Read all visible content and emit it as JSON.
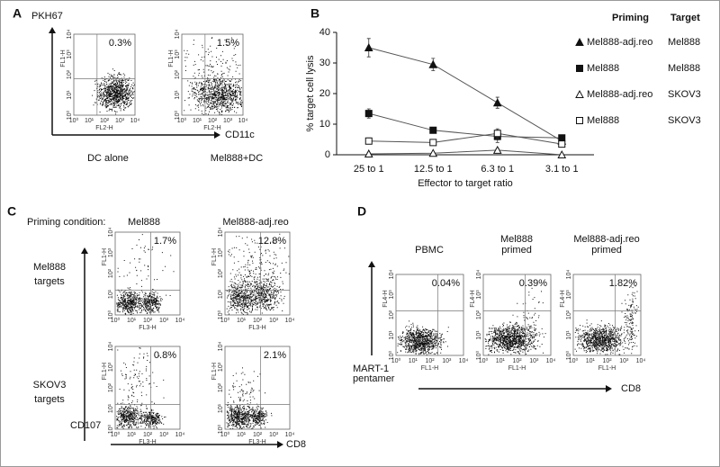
{
  "panels": {
    "A": {
      "label": "A",
      "y_axis": "PKH67",
      "x_axis": "CD11c",
      "plots": [
        {
          "title": [
            "DC alone"
          ],
          "percent": "0.3%",
          "x_label": "FL2-H",
          "y_label": "FL1-H"
        },
        {
          "title": [
            "Mel888+DC"
          ],
          "percent": "1.5%",
          "x_label": "FL2-H",
          "y_label": "FL1-H"
        }
      ]
    },
    "C": {
      "label": "C",
      "header": "Priming condition:",
      "columns": [
        "Mel888",
        "Mel888-adj.reo"
      ],
      "rows": [
        [
          "Mel888",
          "targets"
        ],
        [
          "SKOV3",
          "targets"
        ]
      ],
      "y_axis": "CD107",
      "x_axis": "CD8",
      "plots": [
        {
          "percent": "1.7%",
          "x_label": "FL3-H",
          "y_label": "FL1-H"
        },
        {
          "percent": "12.8%",
          "x_label": "FL3-H",
          "y_label": "FL1-H"
        },
        {
          "percent": "0.8%",
          "x_label": "FL3-H",
          "y_label": "FL1-H"
        },
        {
          "percent": "2.1%",
          "x_label": "FL3-H",
          "y_label": "FL1-H"
        }
      ]
    },
    "D": {
      "label": "D",
      "y_axis": [
        "MART-1",
        "pentamer"
      ],
      "x_axis": "CD8",
      "plots": [
        {
          "title": [
            "PBMC"
          ],
          "percent": "0.04%",
          "x_label": "FL1-H",
          "y_label": "FL4-H"
        },
        {
          "title": [
            "Mel888",
            "primed"
          ],
          "percent": "0.39%",
          "x_label": "FL1-H",
          "y_label": "FL4-H"
        },
        {
          "title": [
            "Mel888-adj.reo",
            "primed"
          ],
          "percent": "1.82%",
          "x_label": "FL1-H",
          "y_label": "FL4-H"
        }
      ]
    },
    "decades": [
      "10⁰",
      "10¹",
      "10²",
      "10³",
      "10⁴"
    ]
  },
  "chart_data": {
    "type": "line",
    "panel_label": "B",
    "x_label": "Effector to target ratio",
    "y_label": "% target cell lysis",
    "categories": [
      "25 to 1",
      "12.5 to 1",
      "6.3 to 1",
      "3.1 to 1"
    ],
    "ylim": [
      0,
      40
    ],
    "yticks": [
      0,
      10,
      20,
      30,
      40
    ],
    "legend_headers": [
      "Priming",
      "Target"
    ],
    "series": [
      {
        "name": "Mel888-adj.reo",
        "target": "Mel888",
        "marker": "triangle",
        "filled": true,
        "color": "#111",
        "values": [
          35,
          29.5,
          17,
          4.5
        ],
        "errors": [
          3,
          2,
          1.8,
          1
        ]
      },
      {
        "name": "Mel888",
        "target": "Mel888",
        "marker": "square",
        "filled": true,
        "color": "#111",
        "values": [
          13.5,
          8,
          6,
          5.5
        ],
        "errors": [
          1.5,
          0.6,
          2,
          0.5
        ]
      },
      {
        "name": "Mel888-adj.reo",
        "target": "SKOV3",
        "marker": "triangle",
        "filled": false,
        "color": "#111",
        "values": [
          0.3,
          0.5,
          1.5,
          0
        ],
        "errors": [
          0.3,
          0.3,
          0.5,
          0.3
        ]
      },
      {
        "name": "Mel888",
        "target": "SKOV3",
        "marker": "square",
        "filled": false,
        "color": "#111",
        "values": [
          4.5,
          4,
          7,
          3.5
        ],
        "errors": [
          1,
          0.6,
          1.5,
          0.6
        ]
      }
    ]
  }
}
